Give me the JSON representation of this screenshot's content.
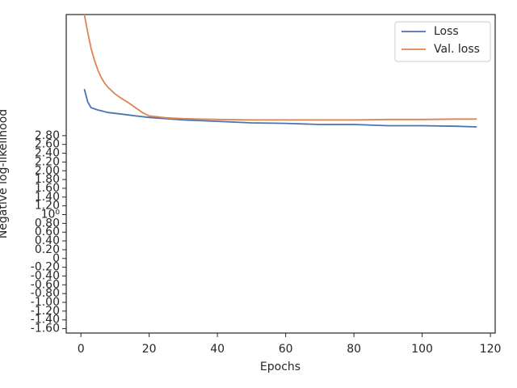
{
  "chart_data": {
    "type": "line",
    "xlabel": "Epochs",
    "ylabel": "Negative log-likelihood",
    "xlim": [
      -4.3,
      121.4
    ],
    "xticks": [
      0,
      20,
      40,
      60,
      80,
      100,
      120
    ],
    "ylim": [
      -1.7,
      1000
    ],
    "yscale": "symlog",
    "linthresh": 3,
    "yticks": [
      {
        "value": -1.6,
        "label": "-1.60"
      },
      {
        "value": -1.4,
        "label": "-1.40"
      },
      {
        "value": -1.2,
        "label": "-1.20"
      },
      {
        "value": -1.0,
        "label": "-1.00"
      },
      {
        "value": -0.8,
        "label": "-0.80"
      },
      {
        "value": -0.6,
        "label": "-0.60"
      },
      {
        "value": -0.4,
        "label": "-0.40"
      },
      {
        "value": -0.2,
        "label": "-0.20"
      },
      0,
      {
        "value": 0.2,
        "label": "0.20"
      },
      {
        "value": 0.4,
        "label": "0.40"
      },
      {
        "value": 0.6,
        "label": "0.60"
      },
      {
        "value": 0.8,
        "label": "0.80"
      },
      {
        "value": 1,
        "label": "10⁰"
      },
      {
        "value": 1.2,
        "label": "1.20"
      },
      {
        "value": 1.4,
        "label": "1.40"
      },
      {
        "value": 1.6,
        "label": "1.60"
      },
      {
        "value": 1.8,
        "label": "1.80"
      },
      {
        "value": 2.0,
        "label": "2.00"
      },
      {
        "value": 2.2,
        "label": "2.20"
      },
      {
        "value": 2.4,
        "label": "2.40"
      },
      {
        "value": 2.6,
        "label": "2.60"
      },
      {
        "value": 2.8,
        "label": "2.80"
      }
    ],
    "legend": "upper right",
    "series": [
      {
        "name": "Loss",
        "color": "#4c72b0",
        "x": [
          1,
          2,
          3,
          5,
          8,
          12,
          16,
          20,
          30,
          40,
          50,
          60,
          70,
          80,
          90,
          100,
          110,
          116
        ],
        "values": [
          21.3,
          10.9,
          8.1,
          7.2,
          6.3,
          5.8,
          5.3,
          4.9,
          4.3,
          4.0,
          3.7,
          3.6,
          3.4,
          3.4,
          3.2,
          3.2,
          3.1,
          3.0
        ]
      },
      {
        "name": "Val. loss",
        "color": "#dd8452",
        "x": [
          1,
          2,
          3,
          4,
          5,
          6,
          7,
          8,
          10,
          12,
          14,
          16,
          18,
          20,
          25,
          30,
          40,
          50,
          60,
          70,
          80,
          90,
          100,
          110,
          116
        ],
        "values": [
          1000,
          397,
          172,
          92,
          56,
          38,
          28.5,
          23,
          16.5,
          12.9,
          10.4,
          8.1,
          6.3,
          5.3,
          4.8,
          4.6,
          4.4,
          4.3,
          4.3,
          4.3,
          4.3,
          4.4,
          4.4,
          4.5,
          4.5
        ]
      }
    ]
  }
}
